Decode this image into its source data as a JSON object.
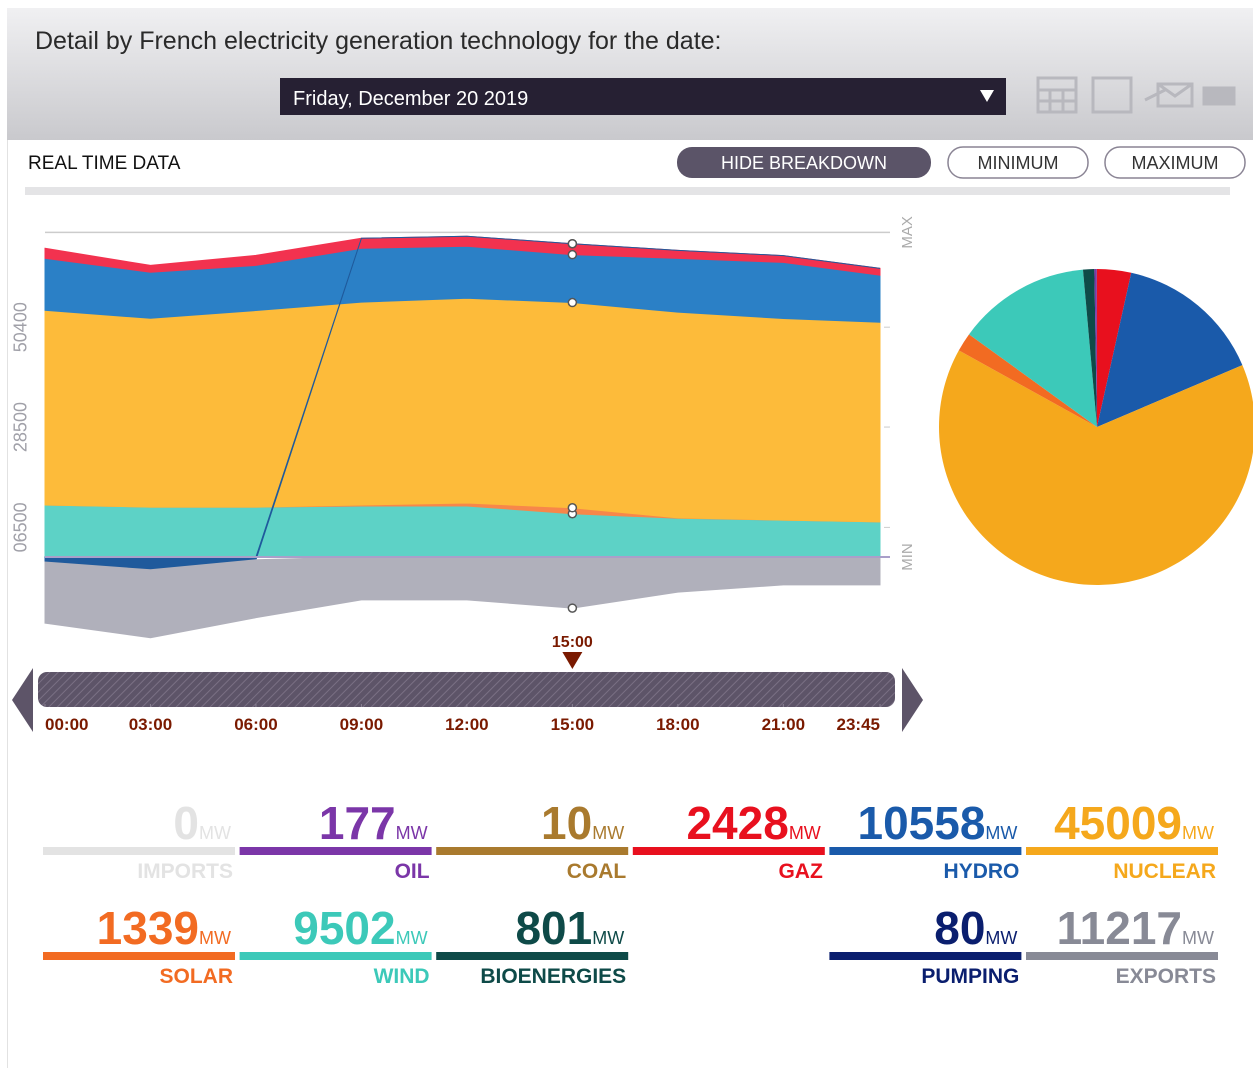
{
  "header": {
    "title": "Detail by French electricity generation technology for the date:",
    "date": "Friday, December 20 2019"
  },
  "toolbar": {
    "label": "REAL TIME DATA",
    "buttons": [
      "HIDE BREAKDOWN",
      "MINIMUM",
      "MAXIMUM"
    ]
  },
  "chart_data": {
    "type": "area",
    "stacked": true,
    "x": [
      0,
      3,
      6,
      9,
      12,
      15,
      18,
      21,
      23.75
    ],
    "xlim": [
      0,
      23.75
    ],
    "xticks": [
      {
        "value": 0,
        "label": "00:00"
      },
      {
        "value": 3,
        "label": "03:00"
      },
      {
        "value": 6,
        "label": "06:00"
      },
      {
        "value": 9,
        "label": "09:00"
      },
      {
        "value": 12,
        "label": "12:00"
      },
      {
        "value": 15,
        "label": "15:00"
      },
      {
        "value": 18,
        "label": "18:00"
      },
      {
        "value": 21,
        "label": "21:00"
      },
      {
        "value": 23.75,
        "label": "23:45"
      }
    ],
    "ylim": [
      -16000,
      75000
    ],
    "yticks": [
      {
        "value": 6500,
        "label": "06500"
      },
      {
        "value": 28500,
        "label": "28500"
      },
      {
        "value": 50400,
        "label": "50400"
      }
    ],
    "max": {
      "value": 71200,
      "label": "MAX"
    },
    "min": {
      "value": 0,
      "label": "MIN"
    },
    "cursor": {
      "value": 15,
      "label": "15:00"
    },
    "series": [
      {
        "color": "#5dd2c6",
        "values": [
          11400,
          10950,
          10950,
          11200,
          11200,
          9500,
          8500,
          8100,
          7700
        ]
      },
      {
        "color": "#f7874a",
        "values": [
          0,
          0,
          0,
          200,
          650,
          1300,
          100,
          0,
          0
        ]
      },
      {
        "color": "#fdbb3a",
        "values": [
          42700,
          41400,
          43100,
          44500,
          44900,
          45000,
          45100,
          44200,
          43800
        ]
      },
      {
        "color": "#2b80c6",
        "values": [
          11400,
          10100,
          9900,
          11800,
          11400,
          10500,
          11800,
          12300,
          10300
        ]
      },
      {
        "color": "#f2324f",
        "values": [
          2200,
          1500,
          2200,
          2200,
          2200,
          2400,
          1750,
          1500,
          1500
        ]
      },
      {
        "color": "#1f5a9c",
        "values": [
          -1100,
          -2800,
          -600,
          0,
          0,
          0,
          0,
          0,
          0
        ]
      },
      {
        "color": "#b0b0bb",
        "values": [
          -13400,
          -14900,
          -12700,
          -9400,
          -9400,
          -11200,
          -7700,
          -6100,
          -6100
        ]
      }
    ]
  },
  "unit": "MW",
  "tiles": [
    {
      "value": 0,
      "label": "IMPORTS",
      "color": "#e3e3e3"
    },
    {
      "value": 177,
      "label": "OIL",
      "color": "#7b36a8"
    },
    {
      "value": 10,
      "label": "COAL",
      "color": "#a97a2e"
    },
    {
      "value": 2428,
      "label": "GAZ",
      "color": "#e8101e"
    },
    {
      "value": 10558,
      "label": "HYDRO",
      "color": "#1a5aaa"
    },
    {
      "value": 45009,
      "label": "NUCLEAR",
      "color": "#f5a81c"
    },
    {
      "value": 1339,
      "label": "SOLAR",
      "color": "#f26b22"
    },
    {
      "value": 9502,
      "label": "WIND",
      "color": "#3cc9b9"
    },
    {
      "value": 801,
      "label": "BIOENERGIES",
      "color": "#0e4a48"
    },
    {
      "value": 80,
      "label": "PUMPING",
      "color": "#0a1e6e"
    },
    {
      "value": 11217,
      "label": "EXPORTS",
      "color": "#888a96"
    }
  ]
}
